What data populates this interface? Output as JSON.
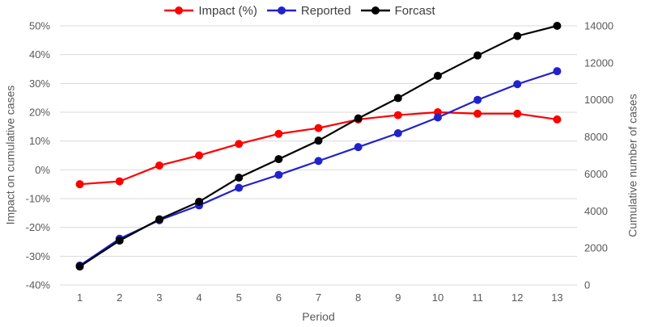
{
  "colors": {
    "background": "#ffffff",
    "grid": "#d9d9d9",
    "tick_text": "#595959",
    "axis_title_text": "#595959",
    "legend_text": "#404040",
    "impact_red": "#ff0000",
    "reported_blue": "#2222cc",
    "forecast_black": "#000000"
  },
  "chart_data": {
    "type": "line",
    "title": "",
    "x_label": "Period",
    "x": [
      1,
      2,
      3,
      4,
      5,
      6,
      7,
      8,
      9,
      10,
      11,
      12,
      13
    ],
    "x_tick_labels": [
      "1",
      "2",
      "3",
      "4",
      "5",
      "6",
      "7",
      "8",
      "9",
      "10",
      "11",
      "12",
      "13"
    ],
    "left_axis": {
      "label": "Impact on cumulative cases",
      "min": -40,
      "max": 50,
      "step": 10,
      "tick_labels": [
        "50%",
        "40%",
        "30%",
        "20%",
        "10%",
        "0%",
        "-10%",
        "-20%",
        "-30%",
        "-40%"
      ]
    },
    "right_axis": {
      "label": "Cumulative number of cases",
      "min": 0,
      "max": 14000,
      "step": 2000,
      "tick_labels": [
        "14000",
        "12000",
        "10000",
        "8000",
        "6000",
        "4000",
        "2000",
        "0"
      ]
    },
    "grid": true,
    "legend_position": "top-center",
    "series": [
      {
        "name": "Impact (%)",
        "axis": "left",
        "color": "#ff0000",
        "marker": "circle",
        "values": [
          -5,
          -4,
          1.5,
          5,
          9,
          12.5,
          14.5,
          17.5,
          19,
          20,
          19.5,
          19.5,
          17.5
        ]
      },
      {
        "name": "Reported",
        "axis": "right",
        "color": "#2222cc",
        "marker": "circle",
        "values": [
          1050,
          2500,
          3500,
          4300,
          5250,
          5950,
          6700,
          7450,
          8200,
          9050,
          10000,
          10850,
          11550
        ]
      },
      {
        "name": "Forcast",
        "axis": "right",
        "color": "#000000",
        "marker": "circle",
        "values": [
          1000,
          2400,
          3550,
          4500,
          5800,
          6800,
          7800,
          9000,
          10100,
          11300,
          12400,
          13450,
          14000
        ]
      }
    ]
  }
}
